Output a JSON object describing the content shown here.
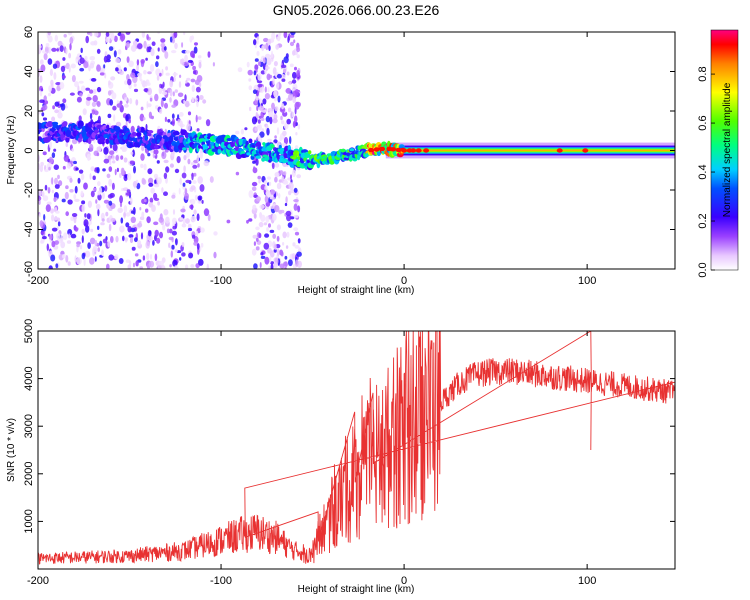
{
  "title": "GN05.2026.066.00.23.E26",
  "chart_data": [
    {
      "type": "heatmap",
      "title": "GN05.2026.066.00.23.E26",
      "xlabel": "Height of straight line (km)",
      "ylabel": "Frequency (Hz)",
      "xlim": [
        -200,
        148
      ],
      "ylim": [
        -60,
        60
      ],
      "xticks": [
        -200,
        -100,
        0,
        100
      ],
      "yticks": [
        -60,
        -40,
        -20,
        0,
        20,
        40,
        60
      ],
      "colorbar": {
        "label": "Normalized spectral amplitude",
        "range": [
          0,
          0.98
        ],
        "ticks": [
          0.0,
          0.2,
          0.4,
          0.6,
          0.8
        ]
      },
      "ridge": {
        "description": "dominant frequency trace vs height",
        "x": [
          -200,
          -180,
          -160,
          -140,
          -120,
          -100,
          -80,
          -60,
          -50,
          -40,
          -30,
          -20,
          -10,
          0,
          20,
          50,
          100,
          148
        ],
        "y": [
          9,
          10,
          8,
          6,
          5,
          3,
          0,
          -3,
          -5,
          -4,
          -2,
          0,
          1,
          0,
          0,
          0,
          0,
          0
        ]
      },
      "noise_region": [
        -200,
        -57
      ]
    },
    {
      "type": "line",
      "xlabel": "Height of straight line (km)",
      "ylabel": "SNR (10 * v/v)",
      "xlim": [
        -200,
        148
      ],
      "ylim": [
        0,
        5000
      ],
      "xticks": [
        -200,
        -100,
        0,
        100
      ],
      "yticks": [
        1000,
        2000,
        3000,
        4000,
        5000
      ],
      "series": [
        {
          "name": "SNR",
          "color": "#e83232",
          "envelope": {
            "x": [
              -200,
              -150,
              -120,
              -110,
              -100,
              -90,
              -80,
              -70,
              -60,
              -50,
              -45,
              -40,
              -35,
              -30,
              -25,
              -20,
              -15,
              -10,
              -5,
              0,
              10,
              20,
              30,
              40,
              50,
              60,
              70,
              80,
              90,
              100,
              110,
              120,
              130,
              140,
              148
            ],
            "y": [
              200,
              250,
              350,
              450,
              550,
              650,
              700,
              600,
              350,
              300,
              800,
              1000,
              1400,
              1700,
              1900,
              2100,
              2300,
              2500,
              2700,
              2800,
              3100,
              3500,
              3900,
              4100,
              4150,
              4150,
              4100,
              4050,
              4000,
              3950,
              3900,
              3850,
              3800,
              3750,
              3700
            ]
          },
          "spikes": [
            {
              "x": -87,
              "y": 1700
            },
            {
              "x": -47,
              "y": 1200
            },
            {
              "x": -27,
              "y": 3300
            },
            {
              "x": -17,
              "y": 3700
            },
            {
              "x": 102,
              "y": 5000
            },
            {
              "x": 102,
              "y": 2500
            }
          ]
        }
      ]
    }
  ]
}
